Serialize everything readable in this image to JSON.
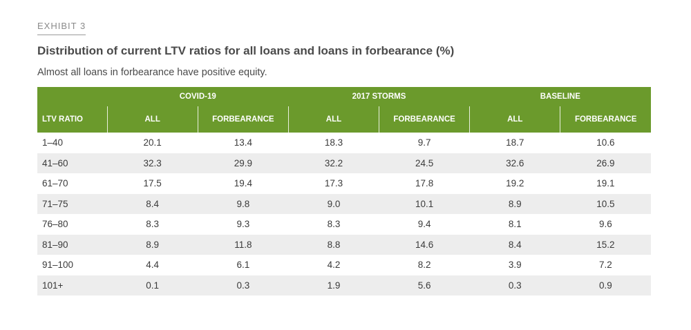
{
  "exhibit": "EXHIBIT 3",
  "title": "Distribution of current LTV ratios for all loans and loans in forbearance (%)",
  "subtitle": "Almost all loans in forbearance have positive equity.",
  "colors": {
    "header_green": "#6b9a2c",
    "stripe": "#ededed"
  },
  "chart_data": {
    "type": "table",
    "title": "Distribution of current LTV ratios for all loans and loans in forbearance (%)",
    "row_header": "LTV RATIO",
    "groups": [
      {
        "name": "COVID-19",
        "columns": [
          "ALL",
          "FORBEARANCE"
        ]
      },
      {
        "name": "2017 STORMS",
        "columns": [
          "ALL",
          "FORBEARANCE"
        ]
      },
      {
        "name": "BASELINE",
        "columns": [
          "ALL",
          "FORBEARANCE"
        ]
      }
    ],
    "rows": [
      {
        "ltv": "1–40",
        "values": [
          "20.1",
          "13.4",
          "18.3",
          "9.7",
          "18.7",
          "10.6"
        ]
      },
      {
        "ltv": "41–60",
        "values": [
          "32.3",
          "29.9",
          "32.2",
          "24.5",
          "32.6",
          "26.9"
        ]
      },
      {
        "ltv": "61–70",
        "values": [
          "17.5",
          "19.4",
          "17.3",
          "17.8",
          "19.2",
          "19.1"
        ]
      },
      {
        "ltv": "71–75",
        "values": [
          "8.4",
          "9.8",
          "9.0",
          "10.1",
          "8.9",
          "10.5"
        ]
      },
      {
        "ltv": "76–80",
        "values": [
          "8.3",
          "9.3",
          "8.3",
          "9.4",
          "8.1",
          "9.6"
        ]
      },
      {
        "ltv": "81–90",
        "values": [
          "8.9",
          "11.8",
          "8.8",
          "14.6",
          "8.4",
          "15.2"
        ]
      },
      {
        "ltv": "91–100",
        "values": [
          "4.4",
          "6.1",
          "4.2",
          "8.2",
          "3.9",
          "7.2"
        ]
      },
      {
        "ltv": "101+",
        "values": [
          "0.1",
          "0.3",
          "1.9",
          "5.6",
          "0.3",
          "0.9"
        ]
      }
    ]
  }
}
